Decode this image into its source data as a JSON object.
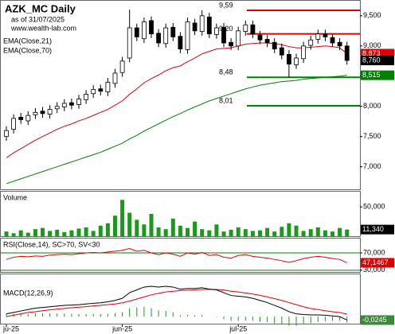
{
  "chart_data": [
    {
      "type": "candlestick",
      "title": "AZK_MC Daily",
      "subtitle": "as of 31/07/2025",
      "source": "www.wealth-lab.com",
      "open": [
        7.5,
        7.62,
        7.82,
        7.76,
        7.86,
        7.92,
        7.87,
        7.96,
        7.99,
        8.06,
        8.03,
        8.11,
        8.21,
        8.29,
        8.24,
        8.38,
        8.56,
        8.8,
        9.3,
        9.12,
        9.42,
        9.21,
        9.04,
        9.31,
        9.16,
        8.94,
        9.38,
        9.24,
        9.48,
        9.19,
        9.31,
        9.06,
        9.0,
        9.24,
        9.35,
        9.18,
        9.11,
        9.06,
        8.97,
        8.86,
        8.69,
        8.79,
        9.01,
        9.11,
        9.2,
        9.14,
        9.06,
        9.0
      ],
      "high": [
        7.67,
        7.87,
        7.89,
        7.92,
        7.97,
        7.99,
        8.02,
        8.07,
        8.12,
        8.13,
        8.19,
        8.27,
        8.35,
        8.36,
        8.47,
        8.62,
        8.82,
        9.6,
        9.37,
        9.47,
        9.49,
        9.28,
        9.37,
        9.38,
        9.23,
        9.47,
        9.45,
        9.59,
        9.55,
        9.37,
        9.38,
        9.13,
        9.32,
        9.42,
        9.42,
        9.25,
        9.18,
        9.13,
        9.04,
        8.93,
        8.87,
        9.07,
        9.17,
        9.27,
        9.27,
        9.21,
        9.13,
        9.07
      ],
      "low": [
        7.43,
        7.55,
        7.71,
        7.69,
        7.79,
        7.81,
        7.8,
        7.89,
        7.92,
        7.95,
        7.96,
        8.04,
        8.14,
        8.18,
        8.17,
        8.31,
        8.49,
        8.73,
        9.08,
        9.05,
        9.13,
        8.98,
        8.97,
        9.08,
        8.88,
        8.87,
        9.18,
        9.17,
        9.13,
        9.12,
        8.98,
        8.93,
        8.93,
        9.17,
        9.13,
        9.03,
        8.98,
        8.88,
        8.78,
        8.48,
        8.62,
        8.72,
        8.94,
        9.04,
        9.08,
        8.98,
        8.93,
        8.69
      ],
      "close": [
        7.6,
        7.8,
        7.78,
        7.85,
        7.9,
        7.88,
        7.95,
        8.0,
        8.05,
        8.02,
        8.12,
        8.2,
        8.28,
        8.25,
        8.4,
        8.55,
        8.75,
        9.3,
        9.15,
        9.4,
        9.2,
        9.05,
        9.3,
        9.15,
        8.95,
        9.4,
        9.25,
        9.5,
        9.2,
        9.3,
        9.05,
        9.0,
        9.25,
        9.35,
        9.2,
        9.1,
        9.05,
        8.95,
        8.85,
        8.7,
        8.8,
        9.0,
        9.1,
        9.2,
        9.15,
        9.05,
        9.0,
        8.76
      ],
      "close_label": "8,760",
      "up_color": "#ffffff",
      "down_color": "#000000",
      "ylim": [
        6.64,
        9.735
      ],
      "yticks": [
        {
          "value": 9.5,
          "label": "9,500"
        },
        {
          "value": 9,
          "label": "9,000"
        },
        {
          "value": 8.5,
          "label": "8,500"
        },
        {
          "value": 8,
          "label": "8,000"
        },
        {
          "value": 7.5,
          "label": "7,500"
        },
        {
          "value": 7,
          "label": "7,000"
        }
      ],
      "series": [
        {
          "name": "EMA(Close,21)",
          "color": "#e00000",
          "last_label": "8,873",
          "values": [
            7.15,
            7.23,
            7.3,
            7.37,
            7.44,
            7.5,
            7.56,
            7.62,
            7.67,
            7.71,
            7.76,
            7.8,
            7.85,
            7.9,
            7.95,
            8.02,
            8.09,
            8.2,
            8.29,
            8.39,
            8.46,
            8.52,
            8.59,
            8.64,
            8.67,
            8.74,
            8.8,
            8.87,
            8.91,
            8.95,
            8.96,
            8.97,
            9.0,
            9.03,
            9.04,
            9.05,
            9.05,
            9.04,
            9.02,
            8.99,
            8.97,
            8.97,
            8.98,
            8.99,
            9.0,
            8.99,
            8.97,
            8.873
          ]
        },
        {
          "name": "EMA(Close,70)",
          "color": "#008000",
          "last_label": "8,515",
          "values": [
            6.72,
            6.76,
            6.8,
            6.84,
            6.88,
            6.92,
            6.96,
            7.0,
            7.04,
            7.08,
            7.12,
            7.16,
            7.2,
            7.24,
            7.29,
            7.34,
            7.39,
            7.46,
            7.52,
            7.59,
            7.65,
            7.71,
            7.77,
            7.83,
            7.88,
            7.94,
            7.99,
            8.04,
            8.09,
            8.13,
            8.17,
            8.21,
            8.25,
            8.29,
            8.32,
            8.35,
            8.37,
            8.39,
            8.41,
            8.42,
            8.43,
            8.45,
            8.46,
            8.47,
            8.48,
            8.49,
            8.5,
            8.515
          ]
        }
      ],
      "levels": [
        {
          "value": 9.59,
          "label": "9,59",
          "color": "#e00000"
        },
        {
          "value": 9.2,
          "label": "9,20",
          "color": "#e00000"
        },
        {
          "value": 8.48,
          "label": "8,48",
          "color": "#008000"
        },
        {
          "value": 8.01,
          "label": "8,01",
          "color": "#008000"
        }
      ]
    },
    {
      "type": "bar",
      "title": "Volume",
      "color": "#1a9a1a",
      "last_label": "11,340",
      "values": [
        8,
        5,
        10,
        6,
        12,
        14,
        9,
        11,
        7,
        10,
        13,
        15,
        9,
        18,
        22,
        35,
        62,
        40,
        28,
        20,
        38,
        15,
        12,
        30,
        18,
        14,
        25,
        12,
        10,
        20,
        8,
        11,
        15,
        12,
        9,
        10,
        14,
        8,
        16,
        22,
        18,
        9,
        12,
        15,
        10,
        8,
        14,
        11.34
      ],
      "ylim": [
        0,
        76
      ],
      "yticks": [
        {
          "value": 50,
          "label": "50,000"
        }
      ]
    },
    {
      "type": "line",
      "title": "RSI(Close,14), SC>70, SV<30",
      "color": "#e00000",
      "grid_color": "#008000",
      "last_label": "47,1467",
      "values": [
        55,
        60,
        62,
        61,
        63,
        62,
        65,
        66,
        67,
        66,
        68,
        70,
        71,
        70,
        72,
        74,
        76,
        80,
        74,
        76,
        70,
        66,
        70,
        67,
        62,
        70,
        67,
        71,
        64,
        66,
        60,
        58,
        64,
        66,
        62,
        60,
        58,
        55,
        52,
        48,
        52,
        57,
        60,
        62,
        60,
        57,
        55,
        47.1467
      ],
      "ylim": [
        26,
        103
      ],
      "yticks": [
        {
          "value": 70,
          "label": "70,000"
        },
        {
          "value": 30,
          "label": "30,000"
        }
      ]
    },
    {
      "type": "macd",
      "title": "MACD(12,26,9)",
      "last_label": "-0,0245",
      "macd_color": "#000000",
      "signal_color": "#e00000",
      "histogram_color": "#1a9a1a",
      "categories": [
        "ju-25",
        null,
        null,
        null,
        null,
        null,
        null,
        null,
        null,
        null,
        null,
        null,
        null,
        null,
        null,
        null,
        "jun-25",
        null,
        null,
        null,
        null,
        null,
        null,
        null,
        null,
        null,
        null,
        null,
        null,
        null,
        null,
        null,
        "jul-25",
        null,
        null,
        null,
        null,
        null,
        null,
        null,
        null,
        null,
        null,
        null,
        null,
        null,
        null,
        null
      ],
      "macd": [
        0.02,
        0.03,
        0.04,
        0.05,
        0.06,
        0.065,
        0.07,
        0.075,
        0.08,
        0.082,
        0.085,
        0.09,
        0.095,
        0.098,
        0.105,
        0.115,
        0.13,
        0.17,
        0.19,
        0.21,
        0.215,
        0.21,
        0.215,
        0.21,
        0.195,
        0.2,
        0.2,
        0.205,
        0.195,
        0.19,
        0.17,
        0.15,
        0.145,
        0.14,
        0.13,
        0.115,
        0.1,
        0.08,
        0.06,
        0.035,
        0.02,
        0.015,
        0.012,
        0.012,
        0.01,
        0.005,
        0.0,
        -0.0245
      ],
      "signal": [
        0.0,
        0.01,
        0.02,
        0.03,
        0.035,
        0.042,
        0.048,
        0.053,
        0.058,
        0.063,
        0.067,
        0.071,
        0.076,
        0.08,
        0.085,
        0.09,
        0.098,
        0.11,
        0.125,
        0.14,
        0.155,
        0.165,
        0.175,
        0.18,
        0.185,
        0.188,
        0.19,
        0.193,
        0.194,
        0.193,
        0.189,
        0.18,
        0.175,
        0.168,
        0.16,
        0.151,
        0.14,
        0.128,
        0.115,
        0.1,
        0.085,
        0.07,
        0.058,
        0.05,
        0.042,
        0.035,
        0.029,
        0.018
      ],
      "histogram": [
        0.02,
        0.02,
        0.02,
        0.02,
        0.025,
        0.023,
        0.022,
        0.022,
        0.022,
        0.019,
        0.018,
        0.019,
        0.019,
        0.018,
        0.02,
        0.025,
        0.032,
        0.06,
        0.065,
        0.07,
        0.06,
        0.045,
        0.04,
        0.03,
        0.01,
        0.012,
        0.01,
        0.012,
        0.001,
        -0.003,
        -0.019,
        -0.03,
        -0.03,
        -0.028,
        -0.03,
        -0.036,
        -0.04,
        -0.048,
        -0.055,
        -0.065,
        -0.065,
        -0.055,
        -0.046,
        -0.038,
        -0.032,
        -0.03,
        -0.029,
        -0.0425
      ],
      "ylim": [
        -0.05,
        0.3
      ]
    }
  ]
}
